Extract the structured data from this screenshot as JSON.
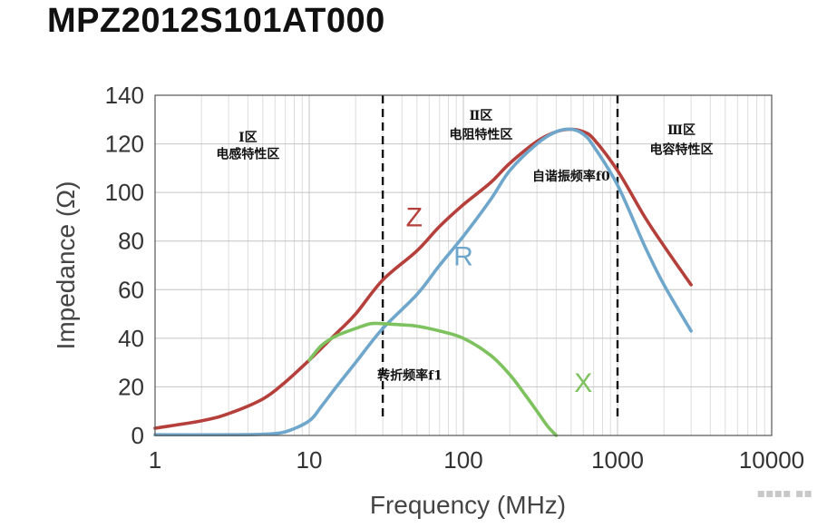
{
  "chart_data": {
    "type": "line",
    "title": "MPZ2012S101AT000",
    "xlabel": "Frequency (MHz)",
    "ylabel": "Impedance (Ω)",
    "x_scale": "log",
    "xlim": [
      1,
      10000
    ],
    "ylim": [
      0,
      140
    ],
    "x_ticks": [
      1,
      10,
      100,
      1000,
      10000
    ],
    "x_tick_labels": [
      "1",
      "10",
      "100",
      "1000",
      "10000"
    ],
    "y_ticks": [
      0,
      20,
      40,
      60,
      80,
      100,
      120,
      140
    ],
    "y_tick_labels": [
      "0",
      "20",
      "40",
      "60",
      "80",
      "100",
      "120",
      "140"
    ],
    "grid": true,
    "series": [
      {
        "name": "Z",
        "color": "#b5403b",
        "x": [
          1,
          2,
          3,
          5,
          7,
          10,
          15,
          20,
          30,
          50,
          70,
          100,
          150,
          200,
          300,
          400,
          500,
          600,
          700,
          1000,
          1500,
          2000,
          3000
        ],
        "y": [
          3,
          6,
          9,
          15,
          22,
          31,
          42,
          50,
          64,
          76,
          86,
          95,
          104,
          112,
          121,
          125,
          126,
          125,
          122,
          109,
          90,
          78,
          62
        ]
      },
      {
        "name": "R",
        "color": "#6ea6cc",
        "x": [
          1,
          3,
          5,
          7,
          10,
          12,
          15,
          20,
          30,
          50,
          70,
          100,
          150,
          200,
          300,
          400,
          500,
          600,
          700,
          1000,
          1500,
          2000,
          3000
        ],
        "y": [
          0.3,
          0.3,
          0.5,
          1.5,
          6,
          12,
          20,
          30,
          44,
          58,
          70,
          82,
          97,
          109,
          120,
          125,
          126,
          124,
          119,
          103,
          78,
          62,
          43
        ]
      },
      {
        "name": "X",
        "color": "#7dc25e",
        "x": [
          10,
          12,
          15,
          20,
          25,
          30,
          40,
          50,
          70,
          100,
          150,
          200,
          250,
          300,
          350,
          400
        ],
        "y": [
          31,
          37,
          41,
          44,
          46,
          46,
          45.5,
          45,
          43,
          40,
          33,
          25,
          17,
          10,
          4,
          0
        ]
      }
    ],
    "vertical_lines": [
      {
        "x": 30,
        "style": "dashed"
      },
      {
        "x": 1000,
        "style": "dashed"
      }
    ],
    "annotations": [
      {
        "id": "region1_num",
        "text": "Ⅰ区",
        "x": 4,
        "y": 121
      },
      {
        "id": "region1_name",
        "text": "电感特性区",
        "x": 4,
        "y": 114
      },
      {
        "id": "region2_num",
        "text": "Ⅱ区",
        "x": 130,
        "y": 130
      },
      {
        "id": "region2_name",
        "text": "电阻特性区",
        "x": 130,
        "y": 122
      },
      {
        "id": "region3_num",
        "text": "Ⅲ区",
        "x": 2600,
        "y": 124
      },
      {
        "id": "region3_name",
        "text": "电容特性区",
        "x": 2600,
        "y": 116
      },
      {
        "id": "srf",
        "text": "自谐振频率f0",
        "x": 500,
        "y": 105
      },
      {
        "id": "corner",
        "text": "转折频率f1",
        "x": 45,
        "y": 23
      }
    ],
    "series_labels": [
      {
        "series": "Z",
        "text": "Z",
        "x": 48,
        "y": 86
      },
      {
        "series": "R",
        "text": "R",
        "x": 100,
        "y": 70
      },
      {
        "series": "X",
        "text": "X",
        "x": 600,
        "y": 18
      }
    ]
  },
  "watermark_text": "▪▪▪▪ ▪▪"
}
